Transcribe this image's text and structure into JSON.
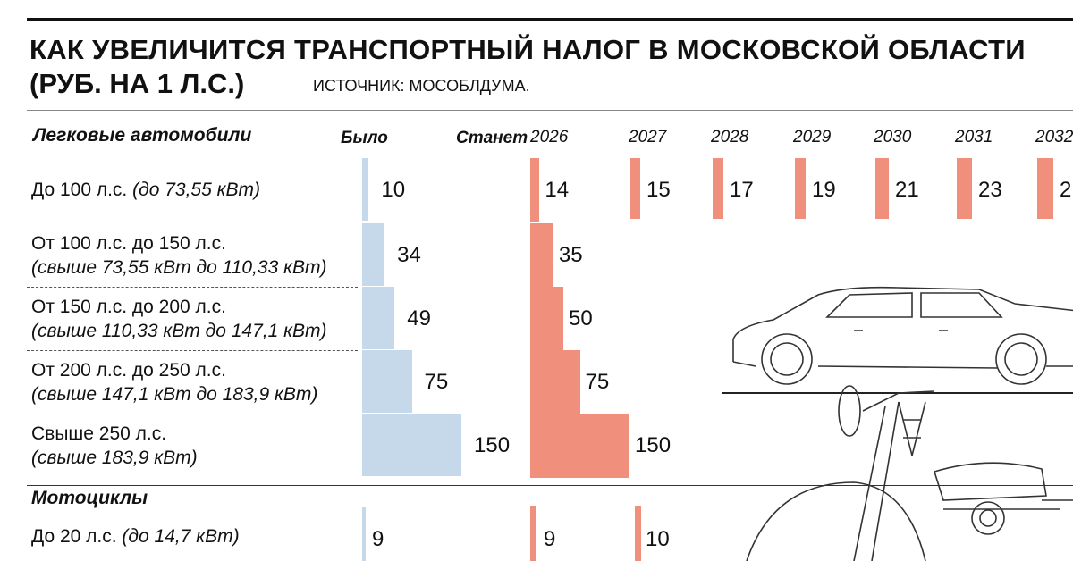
{
  "title_line1": "КАК УВЕЛИЧИТСЯ ТРАНСПОРТНЫЙ НАЛОГ В МОСКОВСКОЙ ОБЛАСТИ",
  "title_line2": "(РУБ. НА 1 Л.С.)",
  "source": "ИСТОЧНИК: МОСОБЛДУМА.",
  "colors": {
    "was": "#c6d9ea",
    "will": "#f08f7c"
  },
  "chart_data": {
    "type": "bar",
    "title": "КАК УВЕЛИЧИТСЯ ТРАНСПОРТНЫЙ НАЛОГ В МОСКОВСКОЙ ОБЛАСТИ (РУБ. НА 1 Л.С.)",
    "column_headers": {
      "was": "Было",
      "will": "Станет",
      "years": [
        "2026",
        "2027",
        "2028",
        "2029",
        "2030",
        "2031",
        "2032"
      ]
    },
    "sections": [
      {
        "name": "Легковые автомобили",
        "rows": [
          {
            "label": "До 100 л.с.",
            "sub": "(до 73,55 кВт)",
            "inline": true,
            "was": 10,
            "will": [
              14,
              15,
              17,
              19,
              21,
              23,
              "2"
            ]
          },
          {
            "label": "От 100 л.с. до 150 л.с.",
            "sub": "(свыше 73,55 кВт до 110,33 кВт)",
            "was": 34,
            "will": [
              35
            ]
          },
          {
            "label": "От 150 л.с. до 200 л.с.",
            "sub": "(свыше 110,33 кВт до 147,1 кВт)",
            "was": 49,
            "will": [
              50
            ]
          },
          {
            "label": "От 200 л.с. до 250 л.с.",
            "sub": "(свыше 147,1 кВт до 183,9 кВт)",
            "was": 75,
            "will": [
              75
            ]
          },
          {
            "label": "Свыше 250 л.с.",
            "sub": "(свыше 183,9 кВт)",
            "was": 150,
            "will": [
              150
            ]
          }
        ]
      },
      {
        "name": "Мотоциклы",
        "rows": [
          {
            "label": "До 20 л.с.",
            "sub": "(до 14,7 кВт)",
            "inline": true,
            "was": 9,
            "will": [
              9,
              10
            ]
          }
        ]
      }
    ]
  }
}
